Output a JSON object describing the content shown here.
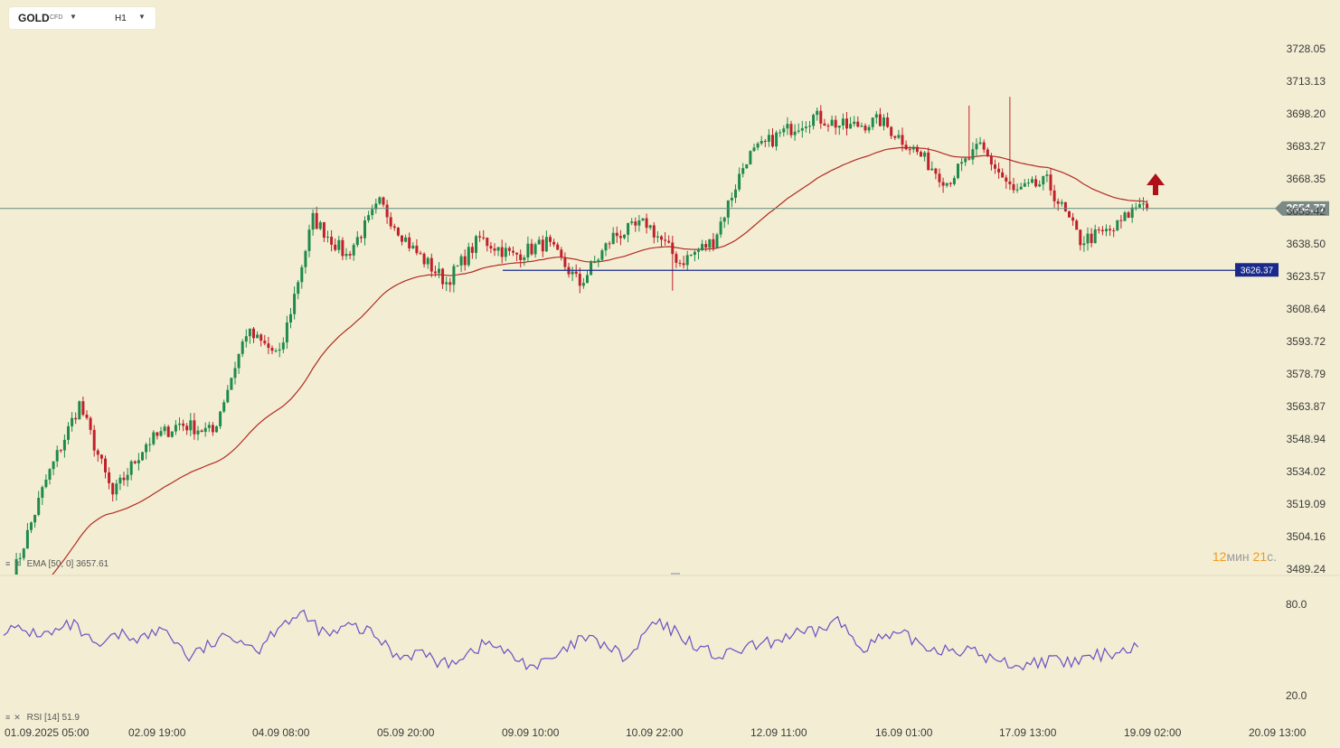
{
  "header": {
    "symbol": "GOLD",
    "symbol_sub": "CFD",
    "timeframe": "H1",
    "symbol_dropdown_icon": "caret-down",
    "timeframe_dropdown_icon": "caret-down"
  },
  "indicators": {
    "ema_label": "EMA",
    "ema_params": "[50, 0]",
    "ema_value": "3657.61",
    "rsi_label": "RSI",
    "rsi_params": "[14]",
    "rsi_value": "51.9",
    "menu_icon": "indicator-menu-icon",
    "close_icon": "close-icon"
  },
  "countdown": {
    "min": "12",
    "min_unit": "мин",
    "sec": "21",
    "sec_unit": "с."
  },
  "colors": {
    "background": "#f3eed3",
    "bull": "#1f8a4c",
    "bear": "#c0202a",
    "ema": "#b22a24",
    "rsi": "#6a4fc4",
    "price_line": "#5e8a7e",
    "price_tag": "#7c8a86",
    "support_line": "#1a2a8c",
    "support_tag": "#1a2a8c",
    "arrow": "#b0101a"
  },
  "chart_data": [
    {
      "type": "candlestick",
      "title": "GOLD CFD H1",
      "y_ticks": [
        "3728.05",
        "3713.13",
        "3698.20",
        "3683.27",
        "3668.35",
        "3653.42",
        "3638.50",
        "3623.57",
        "3608.64",
        "3593.72",
        "3578.79",
        "3563.87",
        "3548.94",
        "3534.02",
        "3519.09",
        "3504.16",
        "3489.24"
      ],
      "x_ticks": [
        "01.09.2025  05:00",
        "02.09  19:00",
        "04.09  08:00",
        "05.09  20:00",
        "09.09  10:00",
        "10.09  22:00",
        "12.09  11:00",
        "16.09  01:00",
        "17.09  13:00",
        "19.09  02:00",
        "20.09  13:00"
      ],
      "current_price": "3654.77",
      "support_level": "3626.37",
      "ema_period": 50,
      "ema_last": "3657.61",
      "anchors": [
        3486,
        3530,
        3565,
        3523,
        3547,
        3556,
        3552,
        3598,
        3587,
        3650,
        3633,
        3657,
        3636,
        3621,
        3641,
        3633,
        3639,
        3620,
        3642,
        3648,
        3630,
        3640,
        3678,
        3689,
        3697,
        3692,
        3695,
        3682,
        3667,
        3683,
        3662,
        3667,
        3640,
        3645,
        3661
      ],
      "high": 3706,
      "low": 3617,
      "signal": "buy-arrow"
    },
    {
      "type": "line",
      "title": "RSI [14]",
      "y_ticks": [
        "80.0",
        "20.0"
      ],
      "last_value": "51.9",
      "anchors": [
        64,
        62,
        60,
        67,
        51,
        60,
        58,
        64,
        45,
        54,
        60,
        50,
        69,
        72,
        59,
        66,
        60,
        46,
        49,
        40,
        48,
        55,
        45,
        39,
        46,
        58,
        53,
        43,
        68,
        62,
        52,
        45,
        51,
        54,
        60,
        61,
        70,
        52,
        58,
        59,
        51,
        51,
        48,
        42,
        40,
        43,
        41,
        45,
        49,
        51.9
      ]
    }
  ]
}
